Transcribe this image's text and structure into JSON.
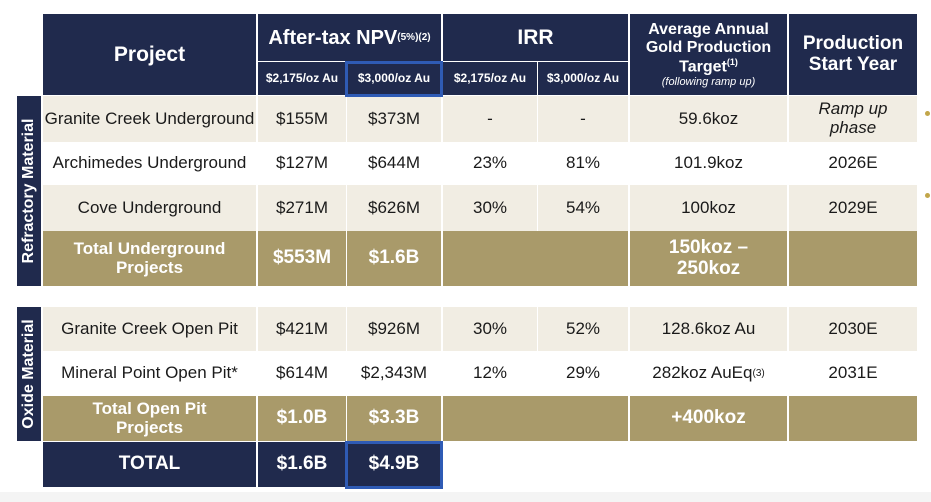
{
  "header": {
    "project": "Project",
    "npv_title": "After-tax NPV",
    "npv_sub": "(5%)",
    "npv_note": "(2)",
    "irr_title": "IRR",
    "price_1": "$2,175/oz Au",
    "price_2": "$3,000/oz Au",
    "price_3": "$2,175/oz Au",
    "price_4": "$3,000/oz Au",
    "gold_title": "Average Annual Gold Production Target",
    "gold_note": "(1)",
    "gold_sub": "(following ramp up)",
    "start_title": "Production Start Year"
  },
  "sections": {
    "refractory": "Refractory Material",
    "oxide": "Oxide Material"
  },
  "refractory_rows": [
    {
      "project": "Granite Creek Underground",
      "npv1": "$155M",
      "npv2": "$373M",
      "irr1": "-",
      "irr2": "-",
      "gold": "59.6koz",
      "gold_note": "",
      "start": "Ramp up phase"
    },
    {
      "project": "Archimedes Underground",
      "npv1": "$127M",
      "npv2": "$644M",
      "irr1": "23%",
      "irr2": "81%",
      "gold": "101.9koz",
      "gold_note": "",
      "start": "2026E"
    },
    {
      "project": "Cove Underground",
      "npv1": "$271M",
      "npv2": "$626M",
      "irr1": "30%",
      "irr2": "54%",
      "gold": "100koz",
      "gold_note": "",
      "start": "2029E"
    }
  ],
  "refractory_total": {
    "label": "Total Underground Projects",
    "npv1": "$553M",
    "npv2": "$1.6B",
    "gold": "150koz – 250koz"
  },
  "oxide_rows": [
    {
      "project": "Granite Creek Open Pit",
      "npv1": "$421M",
      "npv2": "$926M",
      "irr1": "30%",
      "irr2": "52%",
      "gold": "128.6koz Au",
      "gold_note": "",
      "start": "2030E"
    },
    {
      "project": "Mineral Point Open Pit*",
      "npv1": "$614M",
      "npv2": "$2,343M",
      "irr1": "12%",
      "irr2": "29%",
      "gold": "282koz AuEq",
      "gold_note": "(3)",
      "start": "2031E"
    }
  ],
  "oxide_total": {
    "label": "Total Open Pit Projects",
    "npv1": "$1.0B",
    "npv2": "$3.3B",
    "gold": "+400koz"
  },
  "grand_total": {
    "label": "TOTAL",
    "npv1": "$1.6B",
    "npv2": "$4.9B"
  },
  "colors": {
    "navy": "#202a4d",
    "gold": "#a99a6a",
    "cream": "#f1ede3",
    "highlight": "#2f5bb5"
  }
}
